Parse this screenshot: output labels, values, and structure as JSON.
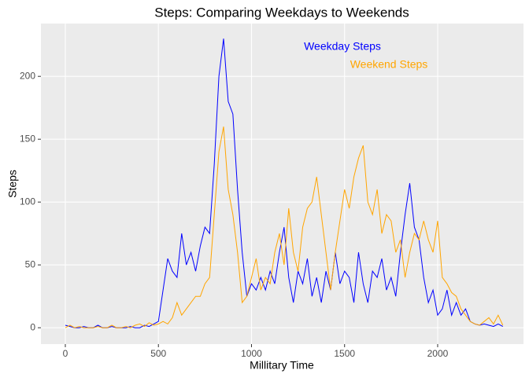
{
  "chart_data": {
    "type": "line",
    "title": "Steps: Comparing Weekdays to Weekends",
    "x_label": "Millitary Time",
    "y_label": "Steps",
    "x": [
      0,
      25,
      50,
      75,
      100,
      125,
      150,
      175,
      200,
      225,
      250,
      275,
      300,
      325,
      350,
      375,
      400,
      425,
      450,
      475,
      500,
      525,
      550,
      575,
      600,
      625,
      650,
      675,
      700,
      725,
      750,
      775,
      800,
      825,
      850,
      875,
      900,
      925,
      950,
      975,
      1000,
      1025,
      1050,
      1075,
      1100,
      1125,
      1150,
      1175,
      1200,
      1225,
      1250,
      1275,
      1300,
      1325,
      1350,
      1375,
      1400,
      1425,
      1450,
      1475,
      1500,
      1525,
      1550,
      1575,
      1600,
      1625,
      1650,
      1675,
      1700,
      1725,
      1750,
      1775,
      1800,
      1825,
      1850,
      1875,
      1900,
      1925,
      1950,
      1975,
      2000,
      2025,
      2050,
      2075,
      2100,
      2125,
      2150,
      2175,
      2200,
      2225,
      2250,
      2275,
      2300,
      2325,
      2350
    ],
    "series": [
      {
        "name": "Weekday Steps",
        "color": "#0000ff",
        "values": [
          2,
          1,
          0,
          0,
          1,
          0,
          0,
          2,
          0,
          0,
          1,
          0,
          0,
          0,
          1,
          0,
          0,
          2,
          1,
          3,
          5,
          30,
          55,
          45,
          40,
          75,
          50,
          60,
          45,
          65,
          80,
          75,
          130,
          200,
          230,
          180,
          170,
          110,
          60,
          25,
          35,
          30,
          40,
          30,
          45,
          35,
          60,
          80,
          40,
          20,
          45,
          35,
          55,
          25,
          40,
          20,
          45,
          30,
          60,
          35,
          45,
          40,
          20,
          60,
          35,
          20,
          45,
          40,
          55,
          30,
          40,
          25,
          60,
          90,
          115,
          80,
          70,
          40,
          20,
          30,
          10,
          15,
          30,
          10,
          20,
          10,
          15,
          5,
          3,
          2,
          3,
          2,
          1,
          3,
          1
        ]
      },
      {
        "name": "Weekend Steps",
        "color": "#ffa500",
        "values": [
          0,
          2,
          0,
          1,
          0,
          0,
          0,
          1,
          0,
          0,
          2,
          0,
          0,
          1,
          0,
          2,
          3,
          1,
          4,
          2,
          3,
          5,
          3,
          8,
          20,
          10,
          15,
          20,
          25,
          25,
          35,
          40,
          90,
          140,
          160,
          110,
          90,
          60,
          20,
          25,
          40,
          55,
          30,
          40,
          35,
          60,
          75,
          50,
          95,
          60,
          45,
          80,
          95,
          100,
          120,
          90,
          60,
          30,
          60,
          85,
          110,
          95,
          120,
          135,
          145,
          100,
          90,
          110,
          75,
          90,
          85,
          60,
          70,
          40,
          60,
          75,
          70,
          85,
          70,
          60,
          85,
          40,
          35,
          28,
          25,
          15,
          10,
          5,
          3,
          2,
          5,
          8,
          3,
          10,
          2
        ]
      }
    ],
    "xlim": [
      -131,
      2461
    ],
    "ylim": [
      -13,
      242
    ],
    "xticks": [
      0,
      500,
      1000,
      1500,
      2000
    ],
    "yticks": [
      0,
      50,
      100,
      150,
      200
    ],
    "grid": true
  }
}
